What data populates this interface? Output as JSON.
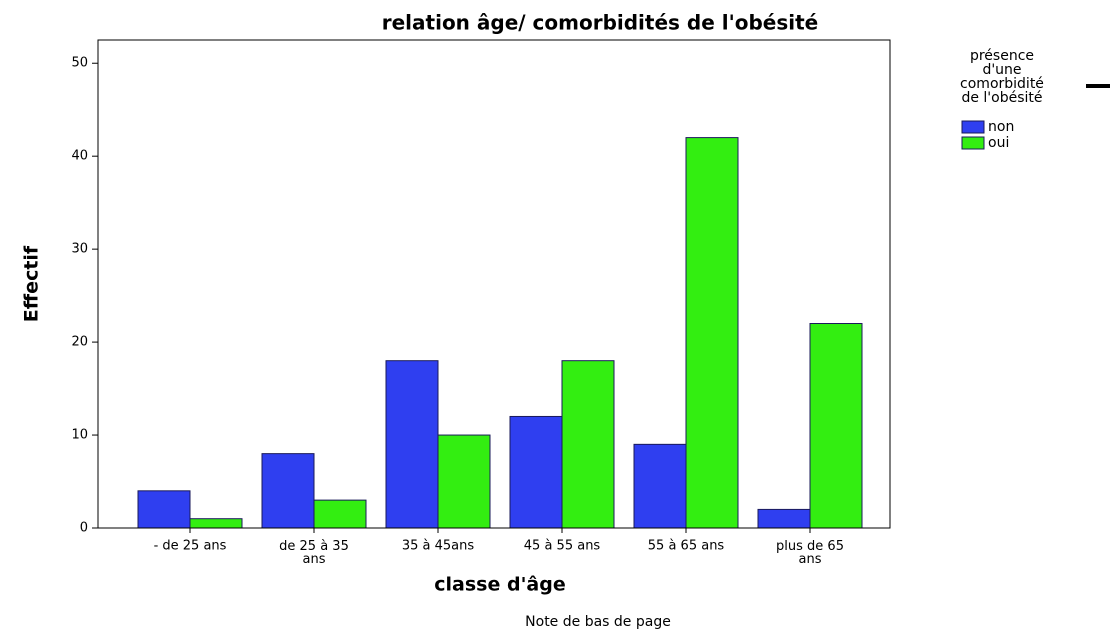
{
  "chart_data": {
    "type": "bar",
    "title": "relation âge/ comorbidités de l'obésité",
    "x_label": "classe d'âge",
    "y_label": "Effectif",
    "footnote": "Note de bas de page",
    "legend_title": [
      "présence",
      "d'une",
      "comorbidité",
      "de l'obésité"
    ],
    "categories": [
      "- de 25 ans",
      "de 25 à 35 ans",
      "35 à 45ans",
      "45 à 55 ans",
      "55 à 65 ans",
      "plus de 65 ans"
    ],
    "series": [
      {
        "name": "non",
        "color": "#2f3ff0",
        "values": [
          4,
          8,
          18,
          12,
          9,
          2
        ]
      },
      {
        "name": "oui",
        "color": "#33ee11",
        "values": [
          1,
          3,
          10,
          18,
          42,
          22
        ]
      }
    ],
    "ylim": [
      0,
      52.5
    ],
    "yticks": [
      0,
      10,
      20,
      30,
      40,
      50
    ]
  }
}
